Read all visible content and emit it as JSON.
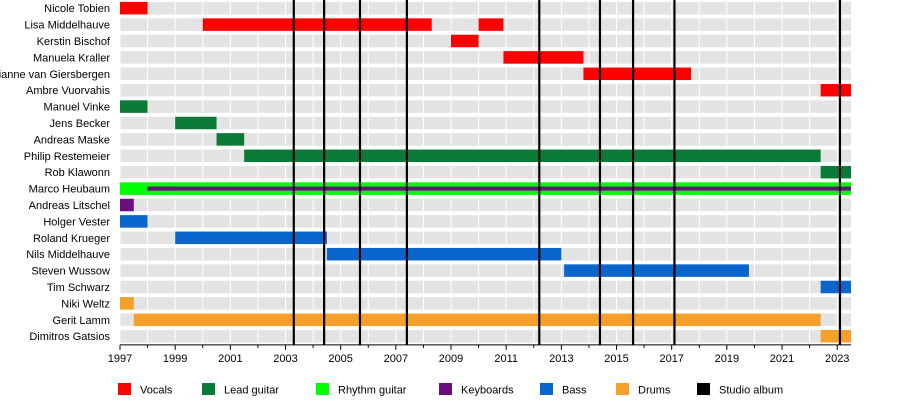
{
  "chart_data": {
    "type": "timeline",
    "title": "",
    "xlabel": "",
    "ylabel": "",
    "x_range": [
      1997,
      2023.5
    ],
    "tick_labels": [
      "1997",
      "1999",
      "2001",
      "2003",
      "2005",
      "2007",
      "2009",
      "2011",
      "2013",
      "2015",
      "2017",
      "2019",
      "2021",
      "2023"
    ],
    "grid": true,
    "legend_position": "bottom",
    "row_band_color": "#e3e3e3",
    "roles": [
      {
        "key": "vocals",
        "name": "Vocals",
        "color": "#ff0000"
      },
      {
        "key": "lead",
        "name": "Lead guitar",
        "color": "#0b7a37"
      },
      {
        "key": "rhythm",
        "name": "Rhythm guitar",
        "color": "#00ff00"
      },
      {
        "key": "keys",
        "name": "Keyboards",
        "color": "#6a0f7e"
      },
      {
        "key": "bass",
        "name": "Bass",
        "color": "#0a66cc"
      },
      {
        "key": "drums",
        "name": "Drums",
        "color": "#f5a02a"
      },
      {
        "key": "album",
        "name": "Studio album",
        "color": "#000000"
      }
    ],
    "members": [
      {
        "name": "Nicole Tobien",
        "bars": [
          {
            "role": "vocals",
            "start": 1997.0,
            "end": 1998.0
          }
        ]
      },
      {
        "name": "Lisa Middelhauve",
        "bars": [
          {
            "role": "vocals",
            "start": 2000.0,
            "end": 2008.3
          },
          {
            "role": "vocals",
            "start": 2010.0,
            "end": 2010.9
          }
        ]
      },
      {
        "name": "Kerstin Bischof",
        "bars": [
          {
            "role": "vocals",
            "start": 2009.0,
            "end": 2010.0
          }
        ]
      },
      {
        "name": "Manuela Kraller",
        "bars": [
          {
            "role": "vocals",
            "start": 2010.9,
            "end": 2013.8
          }
        ]
      },
      {
        "name": "Dianne van Giersbergen",
        "bars": [
          {
            "role": "vocals",
            "start": 2013.8,
            "end": 2017.7
          }
        ]
      },
      {
        "name": "Ambre Vuorvahis",
        "bars": [
          {
            "role": "vocals",
            "start": 2022.4,
            "end": 2023.5
          }
        ]
      },
      {
        "name": "Manuel Vinke",
        "bars": [
          {
            "role": "lead",
            "start": 1997.0,
            "end": 1998.0
          }
        ]
      },
      {
        "name": "Jens Becker",
        "bars": [
          {
            "role": "lead",
            "start": 1999.0,
            "end": 2000.5
          }
        ]
      },
      {
        "name": "Andreas Maske",
        "bars": [
          {
            "role": "lead",
            "start": 2000.5,
            "end": 2001.5
          }
        ]
      },
      {
        "name": "Philip Restemeier",
        "bars": [
          {
            "role": "lead",
            "start": 2001.5,
            "end": 2022.4
          }
        ]
      },
      {
        "name": "Rob Klawonn",
        "bars": [
          {
            "role": "lead",
            "start": 2022.4,
            "end": 2023.5
          }
        ]
      },
      {
        "name": "Marco Heubaum",
        "bars": [
          {
            "role": "rhythm",
            "start": 1997.0,
            "end": 2023.5
          },
          {
            "role": "keys",
            "start": 1998.0,
            "end": 2023.5
          },
          {
            "role": "keys",
            "start": 1998.0,
            "end": 1999.0
          }
        ]
      },
      {
        "name": "Andreas Litschel",
        "bars": [
          {
            "role": "keys",
            "start": 1997.0,
            "end": 1997.5
          }
        ]
      },
      {
        "name": "Holger Vester",
        "bars": [
          {
            "role": "bass",
            "start": 1997.0,
            "end": 1998.0
          }
        ]
      },
      {
        "name": "Roland Krueger",
        "bars": [
          {
            "role": "bass",
            "start": 1999.0,
            "end": 2004.5
          }
        ]
      },
      {
        "name": "Nils Middelhauve",
        "bars": [
          {
            "role": "bass",
            "start": 2004.5,
            "end": 2013.0
          }
        ]
      },
      {
        "name": "Steven Wussow",
        "bars": [
          {
            "role": "bass",
            "start": 2013.1,
            "end": 2019.8
          }
        ]
      },
      {
        "name": "Tim Schwarz",
        "bars": [
          {
            "role": "bass",
            "start": 2022.4,
            "end": 2023.5
          }
        ]
      },
      {
        "name": "Niki Weltz",
        "bars": [
          {
            "role": "drums",
            "start": 1997.0,
            "end": 1997.5
          }
        ]
      },
      {
        "name": "Gerit Lamm",
        "bars": [
          {
            "role": "drums",
            "start": 1997.5,
            "end": 2022.4
          }
        ]
      },
      {
        "name": "Dimitros Gatsios",
        "bars": [
          {
            "role": "drums",
            "start": 2022.4,
            "end": 2023.5
          }
        ]
      }
    ],
    "album_years": [
      2003.3,
      2004.4,
      2005.7,
      2007.4,
      2012.2,
      2014.4,
      2015.6,
      2017.1,
      2023.1
    ]
  }
}
